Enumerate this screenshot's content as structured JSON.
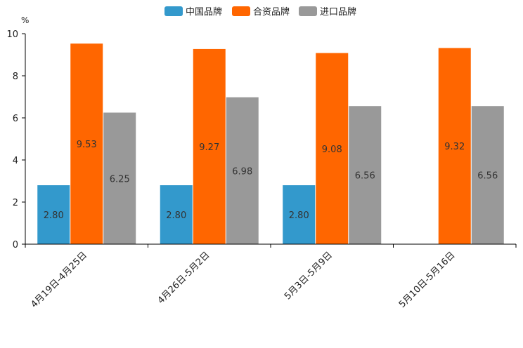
{
  "chart_data": {
    "type": "bar",
    "title": "",
    "xlabel": "",
    "ylabel": "%",
    "ylim": [
      0,
      10
    ],
    "yticks": [
      0,
      2,
      4,
      6,
      8,
      10
    ],
    "grid": false,
    "legend_position": "top-center",
    "categories": [
      "4月19日-4月25日",
      "4月26日-5月2日",
      "5月3日-5月9日",
      "5月10日-5月16日"
    ],
    "series": [
      {
        "name": "中国品牌",
        "color": "#3399CC",
        "values": [
          2.8,
          2.8,
          2.8,
          null
        ],
        "labels": [
          "2.80",
          "2.80",
          "2.80",
          ""
        ]
      },
      {
        "name": "合资品牌",
        "color": "#FF6600",
        "values": [
          9.53,
          9.27,
          9.08,
          9.32
        ],
        "labels": [
          "9.53",
          "9.27",
          "9.08",
          "9.32"
        ]
      },
      {
        "name": "进口品牌",
        "color": "#999999",
        "values": [
          6.25,
          6.98,
          6.56,
          6.56
        ],
        "labels": [
          "6.25",
          "6.98",
          "6.56",
          "6.56"
        ]
      }
    ]
  }
}
